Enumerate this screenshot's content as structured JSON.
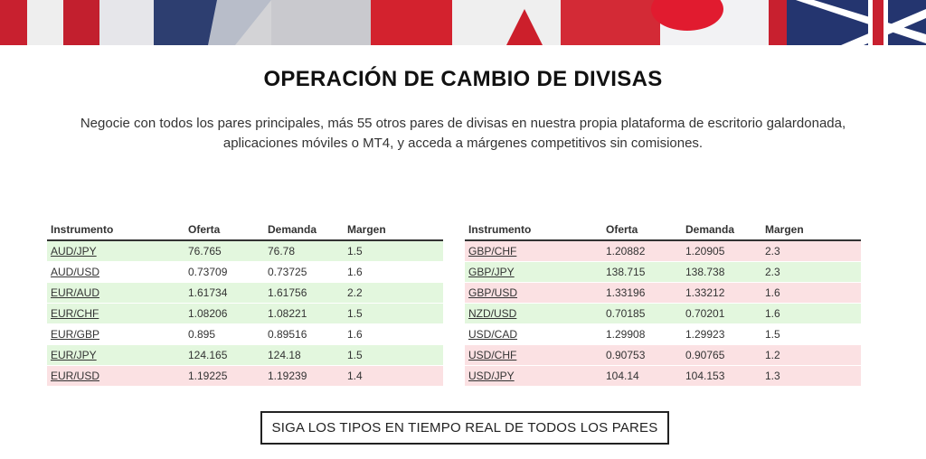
{
  "colors": {
    "up_row": "#e3f7de",
    "down_row": "#fbe1e3",
    "neutral_row": "#ffffff",
    "text": "#333333"
  },
  "header": {
    "title": "OPERACIÓN DE CAMBIO DE DIVISAS",
    "subtitle": "Negocie con todos los pares principales, más 55 otros pares de divisas en nuestra propia plataforma de escritorio galardonada, aplicaciones móviles o MT4, y acceda a márgenes competitivos sin comisiones."
  },
  "columns": [
    "Instrumento",
    "Oferta",
    "Demanda",
    "Margen"
  ],
  "left_table": [
    {
      "instrument": "AUD/JPY",
      "bid": "76.765",
      "ask": "76.78",
      "spread": "1.5",
      "trend": "up"
    },
    {
      "instrument": "AUD/USD",
      "bid": "0.73709",
      "ask": "0.73725",
      "spread": "1.6",
      "trend": "flat"
    },
    {
      "instrument": "EUR/AUD",
      "bid": "1.61734",
      "ask": "1.61756",
      "spread": "2.2",
      "trend": "up"
    },
    {
      "instrument": "EUR/CHF",
      "bid": "1.08206",
      "ask": "1.08221",
      "spread": "1.5",
      "trend": "up"
    },
    {
      "instrument": "EUR/GBP",
      "bid": "0.895",
      "ask": "0.89516",
      "spread": "1.6",
      "trend": "flat"
    },
    {
      "instrument": "EUR/JPY",
      "bid": "124.165",
      "ask": "124.18",
      "spread": "1.5",
      "trend": "up"
    },
    {
      "instrument": "EUR/USD",
      "bid": "1.19225",
      "ask": "1.19239",
      "spread": "1.4",
      "trend": "down"
    }
  ],
  "right_table": [
    {
      "instrument": "GBP/CHF",
      "bid": "1.20882",
      "ask": "1.20905",
      "spread": "2.3",
      "trend": "down"
    },
    {
      "instrument": "GBP/JPY",
      "bid": "138.715",
      "ask": "138.738",
      "spread": "2.3",
      "trend": "up"
    },
    {
      "instrument": "GBP/USD",
      "bid": "1.33196",
      "ask": "1.33212",
      "spread": "1.6",
      "trend": "down"
    },
    {
      "instrument": "NZD/USD",
      "bid": "0.70185",
      "ask": "0.70201",
      "spread": "1.6",
      "trend": "up"
    },
    {
      "instrument": "USD/CAD",
      "bid": "1.29908",
      "ask": "1.29923",
      "spread": "1.5",
      "trend": "flat"
    },
    {
      "instrument": "USD/CHF",
      "bid": "0.90753",
      "ask": "0.90765",
      "spread": "1.2",
      "trend": "down"
    },
    {
      "instrument": "USD/JPY",
      "bid": "104.14",
      "ask": "104.153",
      "spread": "1.3",
      "trend": "down"
    }
  ],
  "cta": {
    "label": "SIGA LOS TIPOS EN TIEMPO REAL DE TODOS LOS PARES"
  }
}
